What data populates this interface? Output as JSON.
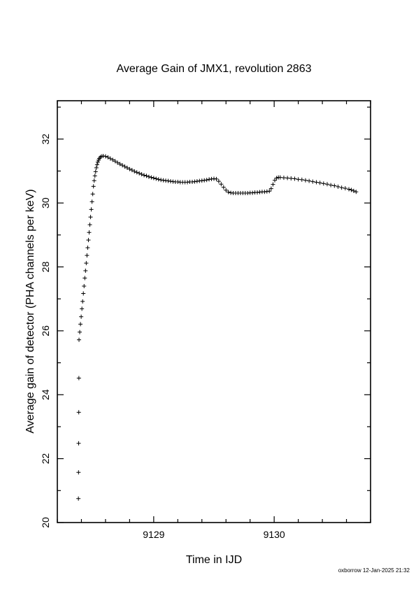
{
  "chart_data": {
    "type": "scatter",
    "title": "Average Gain of JMX1, revolution 2863",
    "xlabel": "Time in IJD",
    "ylabel": "Average gain of detector (PHA channels per keV)",
    "xlim": [
      9128.2,
      9130.8
    ],
    "ylim": [
      20,
      33.2
    ],
    "xticks": [
      9129,
      9130
    ],
    "yticks": [
      20,
      22,
      24,
      26,
      28,
      30,
      32
    ],
    "grid": false,
    "marker": "+",
    "series": [
      {
        "values": [
          [
            9128.375,
            20.75
          ],
          [
            9128.376,
            21.57
          ],
          [
            9128.377,
            22.48
          ],
          [
            9128.378,
            23.45
          ],
          [
            9128.379,
            24.52
          ],
          [
            9128.38,
            25.72
          ],
          [
            9128.386,
            25.96
          ],
          [
            9128.392,
            26.21
          ],
          [
            9128.398,
            26.44
          ],
          [
            9128.404,
            26.69
          ],
          [
            9128.41,
            26.92
          ],
          [
            9128.416,
            27.17
          ],
          [
            9128.422,
            27.4
          ],
          [
            9128.428,
            27.65
          ],
          [
            9128.434,
            27.88
          ],
          [
            9128.44,
            28.12
          ],
          [
            9128.446,
            28.36
          ],
          [
            9128.452,
            28.6
          ],
          [
            9128.458,
            28.84
          ],
          [
            9128.464,
            29.08
          ],
          [
            9128.47,
            29.32
          ],
          [
            9128.476,
            29.56
          ],
          [
            9128.482,
            29.8
          ],
          [
            9128.488,
            30.04
          ],
          [
            9128.494,
            30.28
          ],
          [
            9128.5,
            30.52
          ],
          [
            9128.506,
            30.7
          ],
          [
            9128.512,
            30.85
          ],
          [
            9128.518,
            30.98
          ],
          [
            9128.524,
            31.1
          ],
          [
            9128.53,
            31.2
          ],
          [
            9128.536,
            31.28
          ],
          [
            9128.542,
            31.34
          ],
          [
            9128.548,
            31.39
          ],
          [
            9128.556,
            31.43
          ],
          [
            9128.566,
            31.46
          ],
          [
            9128.58,
            31.47
          ],
          [
            9128.6,
            31.46
          ],
          [
            9128.62,
            31.43
          ],
          [
            9128.64,
            31.39
          ],
          [
            9128.66,
            31.35
          ],
          [
            9128.68,
            31.31
          ],
          [
            9128.7,
            31.26
          ],
          [
            9128.72,
            31.22
          ],
          [
            9128.74,
            31.18
          ],
          [
            9128.76,
            31.14
          ],
          [
            9128.78,
            31.1
          ],
          [
            9128.8,
            31.06
          ],
          [
            9128.82,
            31.03
          ],
          [
            9128.84,
            30.99
          ],
          [
            9128.86,
            30.96
          ],
          [
            9128.88,
            30.93
          ],
          [
            9128.9,
            30.9
          ],
          [
            9128.92,
            30.87
          ],
          [
            9128.94,
            30.85
          ],
          [
            9128.96,
            30.82
          ],
          [
            9128.98,
            30.8
          ],
          [
            9129.0,
            30.78
          ],
          [
            9129.02,
            30.76
          ],
          [
            9129.04,
            30.74
          ],
          [
            9129.06,
            30.72
          ],
          [
            9129.08,
            30.71
          ],
          [
            9129.1,
            30.7
          ],
          [
            9129.12,
            30.69
          ],
          [
            9129.14,
            30.68
          ],
          [
            9129.16,
            30.67
          ],
          [
            9129.18,
            30.66
          ],
          [
            9129.2,
            30.66
          ],
          [
            9129.22,
            30.65
          ],
          [
            9129.24,
            30.65
          ],
          [
            9129.26,
            30.65
          ],
          [
            9129.28,
            30.65
          ],
          [
            9129.3,
            30.66
          ],
          [
            9129.32,
            30.66
          ],
          [
            9129.34,
            30.67
          ],
          [
            9129.36,
            30.68
          ],
          [
            9129.38,
            30.69
          ],
          [
            9129.4,
            30.7
          ],
          [
            9129.42,
            30.71
          ],
          [
            9129.44,
            30.72
          ],
          [
            9129.46,
            30.74
          ],
          [
            9129.48,
            30.75
          ],
          [
            9129.5,
            30.76
          ],
          [
            9129.52,
            30.75
          ],
          [
            9129.54,
            30.68
          ],
          [
            9129.56,
            30.59
          ],
          [
            9129.58,
            30.49
          ],
          [
            9129.6,
            30.4
          ],
          [
            9129.62,
            30.34
          ],
          [
            9129.64,
            30.32
          ],
          [
            9129.66,
            30.31
          ],
          [
            9129.68,
            30.31
          ],
          [
            9129.7,
            30.31
          ],
          [
            9129.72,
            30.31
          ],
          [
            9129.74,
            30.31
          ],
          [
            9129.76,
            30.31
          ],
          [
            9129.78,
            30.31
          ],
          [
            9129.8,
            30.32
          ],
          [
            9129.82,
            30.32
          ],
          [
            9129.84,
            30.33
          ],
          [
            9129.86,
            30.33
          ],
          [
            9129.88,
            30.34
          ],
          [
            9129.9,
            30.35
          ],
          [
            9129.92,
            30.35
          ],
          [
            9129.94,
            30.36
          ],
          [
            9129.96,
            30.37
          ],
          [
            9129.975,
            30.45
          ],
          [
            9129.99,
            30.58
          ],
          [
            9130.005,
            30.71
          ],
          [
            9130.02,
            30.78
          ],
          [
            9130.035,
            30.8
          ],
          [
            9130.05,
            30.8
          ],
          [
            9130.08,
            30.79
          ],
          [
            9130.11,
            30.78
          ],
          [
            9130.14,
            30.77
          ],
          [
            9130.17,
            30.76
          ],
          [
            9130.2,
            30.74
          ],
          [
            9130.23,
            30.73
          ],
          [
            9130.26,
            30.71
          ],
          [
            9130.29,
            30.69
          ],
          [
            9130.32,
            30.67
          ],
          [
            9130.35,
            30.65
          ],
          [
            9130.38,
            30.63
          ],
          [
            9130.41,
            30.61
          ],
          [
            9130.44,
            30.59
          ],
          [
            9130.47,
            30.56
          ],
          [
            9130.5,
            30.54
          ],
          [
            9130.53,
            30.51
          ],
          [
            9130.56,
            30.48
          ],
          [
            9130.59,
            30.46
          ],
          [
            9130.62,
            30.43
          ],
          [
            9130.64,
            30.41
          ],
          [
            9130.66,
            30.38
          ],
          [
            9130.68,
            30.35
          ]
        ]
      }
    ]
  },
  "footer": "oxborrow 12-Jan-2025 21:32"
}
